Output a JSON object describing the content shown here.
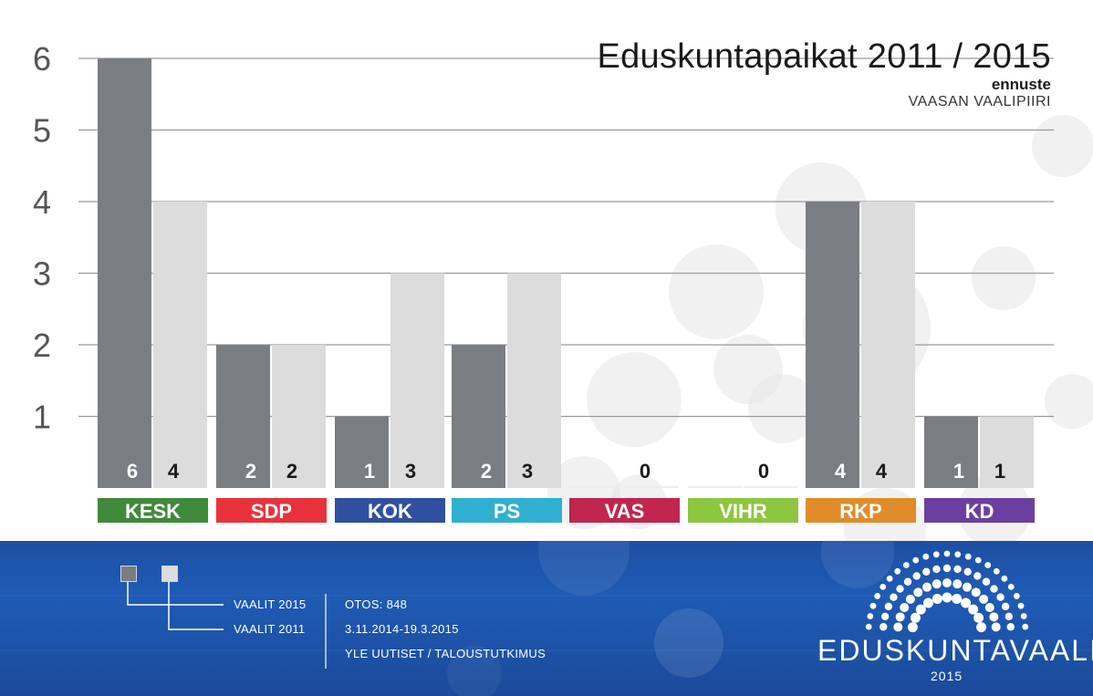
{
  "title": "Eduskuntapaikat 2011 / 2015",
  "subtitle": "ennuste",
  "region": "VAASAN VAALIPIIRI",
  "colors": {
    "bar_2015": "#7a7d82",
    "bar_2011": "#dcdcdc",
    "gridline": "#9a9a9a",
    "footer_bg": "#1f55ad"
  },
  "chart_data": {
    "type": "bar",
    "ylim": [
      0,
      6
    ],
    "yticks": [
      "1",
      "2",
      "3",
      "4",
      "5",
      "6"
    ],
    "categories": [
      "KESK",
      "SDP",
      "KOK",
      "PS",
      "VAS",
      "VIHR",
      "RKP",
      "KD"
    ],
    "category_colors": [
      "#3f8a3b",
      "#e8323b",
      "#2f4fa0",
      "#2fb0d0",
      "#c0264e",
      "#8dc63f",
      "#e08c2a",
      "#6b3fa0"
    ],
    "series": [
      {
        "name": "VAALIT 2015",
        "values": [
          6,
          2,
          1,
          2,
          0,
          0,
          4,
          1
        ],
        "labels": [
          "6",
          "2",
          "1",
          "2",
          "",
          "",
          "4",
          "1"
        ]
      },
      {
        "name": "VAALIT 2011",
        "values": [
          4,
          2,
          3,
          3,
          0,
          0,
          4,
          1
        ],
        "labels": [
          "4",
          "2",
          "3",
          "3",
          "0",
          "0",
          "4",
          "1"
        ]
      }
    ],
    "grid": true
  },
  "legend": {
    "item_2015": "VAALIT 2015",
    "item_2011": "VAALIT 2011"
  },
  "info": {
    "sample": "OTOS: 848",
    "dates": "3.11.2014-19.3.2015",
    "source": "YLE UUTISET / TALOUSTUTKIMUS"
  },
  "logo": {
    "text": "EDUSKUNTAVAALIT",
    "year": "2015"
  }
}
